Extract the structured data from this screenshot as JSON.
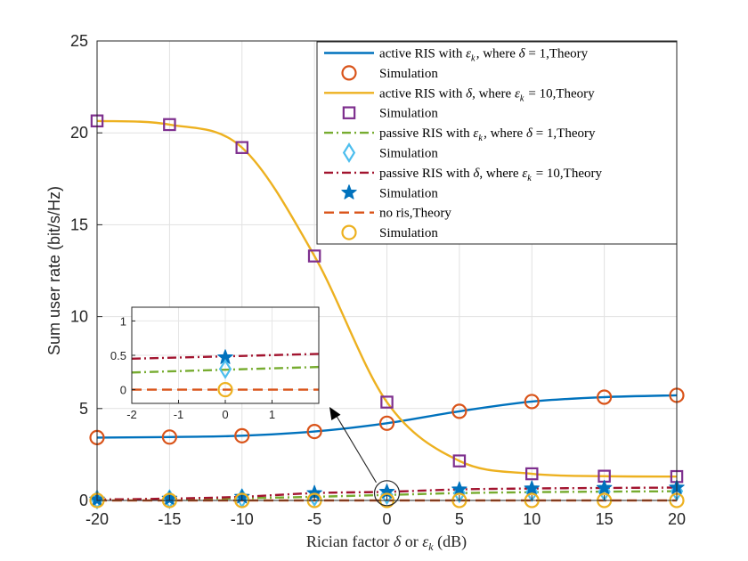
{
  "chart_data": {
    "type": "line",
    "xlabel": "Rician factor δ or ε_k (dB)",
    "ylabel": "Sum user rate (bit/s/Hz)",
    "xlim": [
      -20,
      20
    ],
    "ylim": [
      0,
      25
    ],
    "x_ticks": [
      "-20",
      "-15",
      "-10",
      "-5",
      "0",
      "5",
      "10",
      "15",
      "20"
    ],
    "y_ticks": [
      "0",
      "5",
      "10",
      "15",
      "20",
      "25"
    ],
    "grid": true,
    "x": [
      -20,
      -15,
      -10,
      -5,
      0,
      5,
      10,
      15,
      20
    ],
    "legend_position": "top-right",
    "series": [
      {
        "key": "activeEps",
        "name": "active RIS with ε_k, where δ = 1,Theory",
        "kind": "theory",
        "style": "solid",
        "color": "#0072BD",
        "values": [
          3.42,
          3.45,
          3.52,
          3.75,
          4.2,
          4.85,
          5.38,
          5.62,
          5.72
        ]
      },
      {
        "key": "activeEpsSim",
        "name": "Simulation",
        "kind": "sim",
        "marker": "circle",
        "color": "#D95319",
        "values": [
          3.42,
          3.45,
          3.52,
          3.75,
          4.2,
          4.85,
          5.38,
          5.62,
          5.72
        ]
      },
      {
        "key": "activeDelta",
        "name": "active RIS with δ, where ε_k = 10,Theory",
        "kind": "theory",
        "style": "solid",
        "color": "#EDB120",
        "values": [
          20.65,
          20.45,
          19.2,
          13.3,
          5.35,
          2.15,
          1.45,
          1.32,
          1.3
        ]
      },
      {
        "key": "activeDeltaSim",
        "name": "Simulation",
        "kind": "sim",
        "marker": "square",
        "color": "#7E2F8E",
        "values": [
          20.65,
          20.45,
          19.2,
          13.3,
          5.35,
          2.15,
          1.45,
          1.32,
          1.3
        ]
      },
      {
        "key": "passiveEps",
        "name": "passive RIS with ε_k, where δ = 1,Theory",
        "kind": "theory",
        "style": "dashdot",
        "color": "#77AC30",
        "values": [
          0.05,
          0.07,
          0.12,
          0.2,
          0.3,
          0.4,
          0.45,
          0.48,
          0.5
        ]
      },
      {
        "key": "passiveEpsSim",
        "name": "Simulation",
        "kind": "sim",
        "marker": "diamond",
        "color": "#4DBEEE",
        "values": [
          0.05,
          0.07,
          0.12,
          0.2,
          0.3,
          0.4,
          0.45,
          0.48,
          0.5
        ]
      },
      {
        "key": "passiveDelta",
        "name": "passive RIS with δ, where ε_k = 10,Theory",
        "kind": "theory",
        "style": "dashdot",
        "color": "#A2142F",
        "values": [
          0.05,
          0.1,
          0.2,
          0.4,
          0.47,
          0.6,
          0.65,
          0.68,
          0.7
        ]
      },
      {
        "key": "passiveDeltaSim",
        "name": "Simulation",
        "kind": "sim",
        "marker": "star",
        "color": "#0072BD",
        "values": [
          0.05,
          0.1,
          0.2,
          0.4,
          0.47,
          0.6,
          0.65,
          0.68,
          0.7
        ]
      },
      {
        "key": "noRis",
        "name": "no ris,Theory",
        "kind": "theory",
        "style": "dashed",
        "color": "#D95319",
        "values": [
          0,
          0,
          0,
          0,
          0,
          0,
          0,
          0,
          0
        ]
      },
      {
        "key": "noRisSim",
        "name": "Simulation",
        "kind": "sim",
        "marker": "circle",
        "color": "#EDB120",
        "values": [
          0,
          0,
          0,
          0,
          0,
          0,
          0,
          0,
          0
        ]
      }
    ],
    "inset": {
      "xlim": [
        -2,
        2
      ],
      "ylim": [
        -0.2,
        1.2
      ],
      "x_ticks": [
        "-2",
        "-1",
        "0",
        "1"
      ],
      "y_ticks": [
        "0",
        "0.5",
        "1"
      ],
      "marker_x": 0,
      "lines": [
        {
          "key": "passiveDelta",
          "y_at_-2": 0.45,
          "y_at_2": 0.52,
          "marker_y": 0.47
        },
        {
          "key": "passiveEps",
          "y_at_-2": 0.25,
          "y_at_2": 0.33,
          "marker_y": 0.3
        },
        {
          "key": "noRis",
          "y_at_-2": 0.0,
          "y_at_2": 0.0,
          "marker_y": 0.0
        }
      ]
    }
  }
}
